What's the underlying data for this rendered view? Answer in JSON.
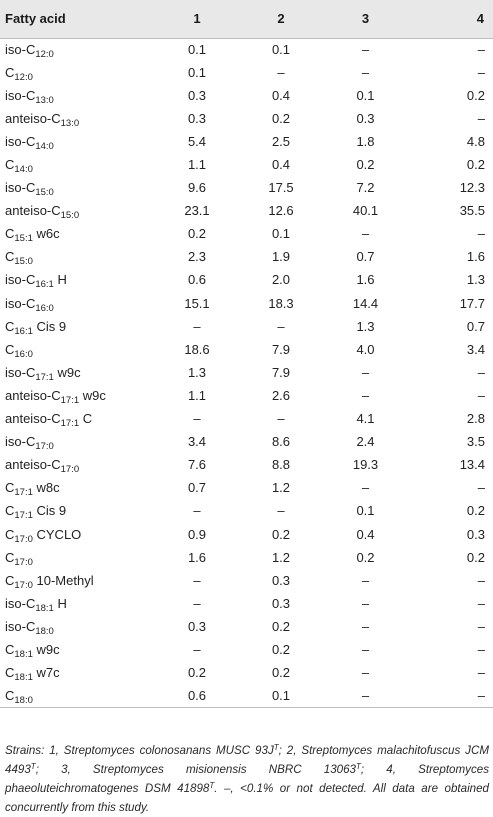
{
  "table": {
    "headers": [
      "Fatty acid",
      "1",
      "2",
      "3",
      "4"
    ],
    "rows": [
      {
        "prefix": "iso-C",
        "sub": "12:0",
        "suffix": "",
        "values": [
          "0.1",
          "0.1",
          "–",
          "–"
        ]
      },
      {
        "prefix": "C",
        "sub": "12:0",
        "suffix": "",
        "values": [
          "0.1",
          "–",
          "–",
          "–"
        ]
      },
      {
        "prefix": "iso-C",
        "sub": "13:0",
        "suffix": "",
        "values": [
          "0.3",
          "0.4",
          "0.1",
          "0.2"
        ]
      },
      {
        "prefix": "anteiso-C",
        "sub": "13:0",
        "suffix": "",
        "values": [
          "0.3",
          "0.2",
          "0.3",
          "–"
        ]
      },
      {
        "prefix": "iso-C",
        "sub": "14:0",
        "suffix": "",
        "values": [
          "5.4",
          "2.5",
          "1.8",
          "4.8"
        ]
      },
      {
        "prefix": "C",
        "sub": "14:0",
        "suffix": "",
        "values": [
          "1.1",
          "0.4",
          "0.2",
          "0.2"
        ]
      },
      {
        "prefix": "iso-C",
        "sub": "15:0",
        "suffix": "",
        "values": [
          "9.6",
          "17.5",
          "7.2",
          "12.3"
        ]
      },
      {
        "prefix": "anteiso-C",
        "sub": "15:0",
        "suffix": "",
        "values": [
          "23.1",
          "12.6",
          "40.1",
          "35.5"
        ]
      },
      {
        "prefix": "C",
        "sub": "15:1",
        "suffix": " w6c",
        "values": [
          "0.2",
          "0.1",
          "–",
          "–"
        ]
      },
      {
        "prefix": "C",
        "sub": "15:0",
        "suffix": "",
        "values": [
          "2.3",
          "1.9",
          "0.7",
          "1.6"
        ]
      },
      {
        "prefix": "iso-C",
        "sub": "16:1",
        "suffix": " H",
        "values": [
          "0.6",
          "2.0",
          "1.6",
          "1.3"
        ]
      },
      {
        "prefix": "iso-C",
        "sub": "16:0",
        "suffix": "",
        "values": [
          "15.1",
          "18.3",
          "14.4",
          "17.7"
        ]
      },
      {
        "prefix": "C",
        "sub": "16:1",
        "suffix": " Cis 9",
        "values": [
          "–",
          "–",
          "1.3",
          "0.7"
        ]
      },
      {
        "prefix": "C",
        "sub": "16:0",
        "suffix": "",
        "values": [
          "18.6",
          "7.9",
          "4.0",
          "3.4"
        ]
      },
      {
        "prefix": "iso-C",
        "sub": "17:1",
        "suffix": " w9c",
        "values": [
          "1.3",
          "7.9",
          "–",
          "–"
        ]
      },
      {
        "prefix": "anteiso-C",
        "sub": "17:1",
        "suffix": " w9c",
        "values": [
          "1.1",
          "2.6",
          "–",
          "–"
        ]
      },
      {
        "prefix": "anteiso-C",
        "sub": "17:1",
        "suffix": " C",
        "values": [
          "–",
          "–",
          "4.1",
          "2.8"
        ]
      },
      {
        "prefix": "iso-C",
        "sub": "17:0",
        "suffix": "",
        "values": [
          "3.4",
          "8.6",
          "2.4",
          "3.5"
        ]
      },
      {
        "prefix": "anteiso-C",
        "sub": "17:0",
        "suffix": "",
        "values": [
          "7.6",
          "8.8",
          "19.3",
          "13.4"
        ]
      },
      {
        "prefix": "C",
        "sub": "17:1",
        "suffix": " w8c",
        "values": [
          "0.7",
          "1.2",
          "–",
          "–"
        ]
      },
      {
        "prefix": "C",
        "sub": "17:1",
        "suffix": " Cis 9",
        "values": [
          "–",
          "–",
          "0.1",
          "0.2"
        ]
      },
      {
        "prefix": "C",
        "sub": "17:0",
        "suffix": " CYCLO",
        "values": [
          "0.9",
          "0.2",
          "0.4",
          "0.3"
        ]
      },
      {
        "prefix": "C",
        "sub": "17:0",
        "suffix": "",
        "values": [
          "1.6",
          "1.2",
          "0.2",
          "0.2"
        ]
      },
      {
        "prefix": "C",
        "sub": "17:0",
        "suffix": " 10-Methyl",
        "values": [
          "–",
          "0.3",
          "–",
          "–"
        ]
      },
      {
        "prefix": "iso-C",
        "sub": "18:1",
        "suffix": " H",
        "values": [
          "–",
          "0.3",
          "–",
          "–"
        ]
      },
      {
        "prefix": "iso-C",
        "sub": "18:0",
        "suffix": "",
        "values": [
          "0.3",
          "0.2",
          "–",
          "–"
        ]
      },
      {
        "prefix": "C",
        "sub": "18:1",
        "suffix": " w9c",
        "values": [
          "–",
          "0.2",
          "–",
          "–"
        ]
      },
      {
        "prefix": "C",
        "sub": "18:1",
        "suffix": " w7c",
        "values": [
          "0.2",
          "0.2",
          "–",
          "–"
        ]
      },
      {
        "prefix": "C",
        "sub": "18:0",
        "suffix": "",
        "values": [
          "0.6",
          "0.1",
          "–",
          "–"
        ]
      }
    ]
  },
  "footnote": {
    "parts": [
      {
        "t": "Strains: 1, Streptomyces colonosanans MUSC 93J"
      },
      {
        "sup": "T"
      },
      {
        "t": "; 2, Streptomyces malachitofuscus JCM 4493"
      },
      {
        "sup": "T"
      },
      {
        "t": "; 3, Streptomyces misionensis NBRC 13063"
      },
      {
        "sup": "T"
      },
      {
        "t": "; 4, Streptomyces phaeoluteichromatogenes DSM 41898"
      },
      {
        "sup": "T"
      },
      {
        "t": ". –, <0.1% or not detected. All data are obtained concurrently from this study."
      }
    ]
  }
}
